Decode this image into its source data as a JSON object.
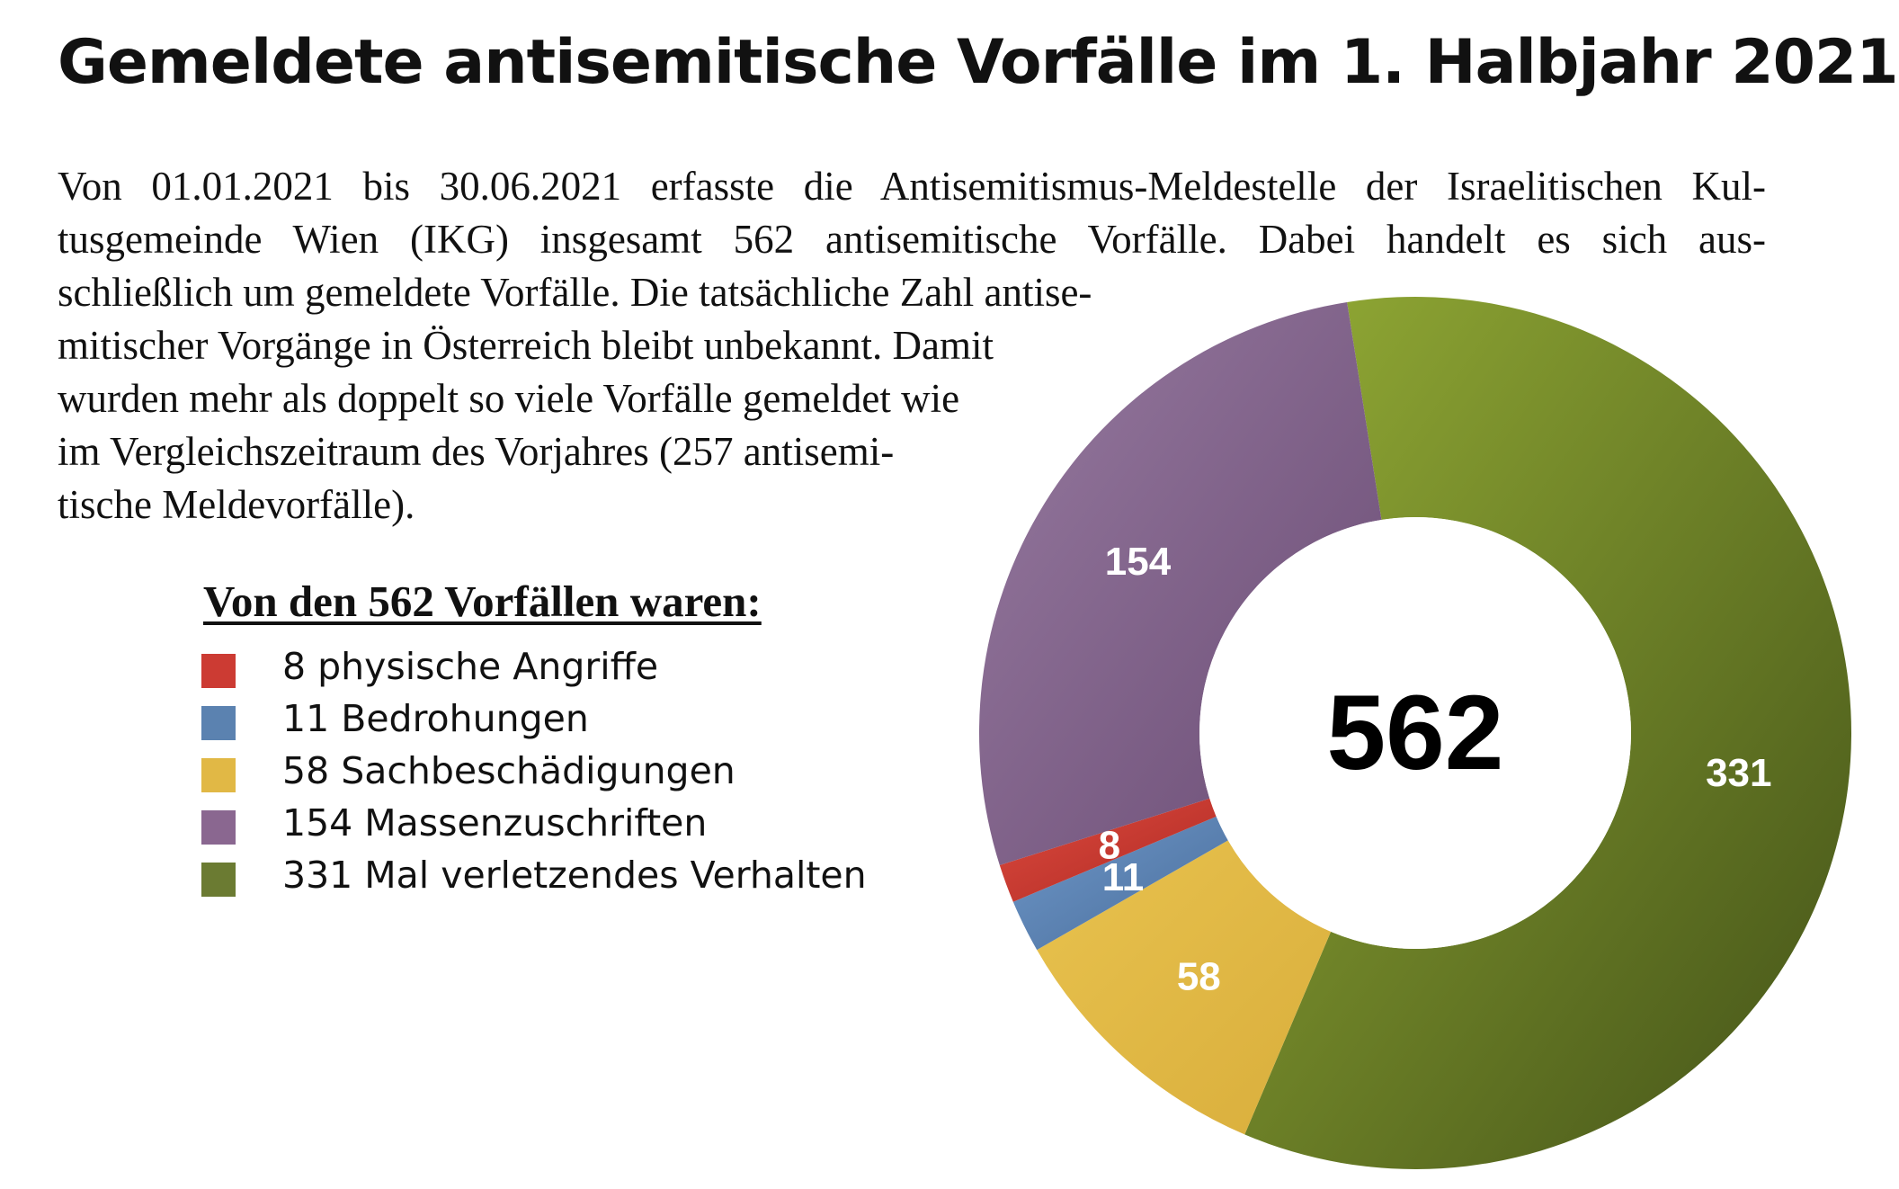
{
  "title": "Gemeldete antisemitische Vorfälle im 1. Halbjahr 2021",
  "paragraph_lines": [
    "Von 01.01.2021 bis 30.06.2021 erfasste die Antisemitismus-Meldestelle der Israelitischen Kul-",
    "tusgemeinde Wien (IKG) insgesamt 562 antisemitische Vorfälle. Dabei handelt es sich aus-",
    "schließlich um gemeldete Vorfälle. Die tatsächliche Zahl antise-",
    "mitischer Vorgänge in Österreich bleibt unbekannt. Damit",
    "wurden mehr als doppelt so viele Vorfälle gemeldet wie",
    "im Vergleichszeitraum des Vorjahres (257 antisemi-",
    "tische Meldevorfälle)."
  ],
  "legend_title": "Von den 562 Vorfällen waren:",
  "legend_items": [
    {
      "label": "8 physische Angriffe",
      "color": "#cc3b33"
    },
    {
      "label": "11 Bedrohungen",
      "color": "#5b82b0"
    },
    {
      "label": "58 Sachbeschädigungen",
      "color": "#e1b845"
    },
    {
      "label": "154 Massenzuschriften",
      "color": "#8a6790"
    },
    {
      "label": "331 Mal verletzendes Verhalten",
      "color": "#6b7b32"
    }
  ],
  "chart_data": {
    "type": "pie",
    "center_label": "562",
    "slices": [
      {
        "label": "331",
        "value": 331,
        "color": "#6b7b32",
        "gradient": [
          "#93ab35",
          "#435218"
        ]
      },
      {
        "label": "58",
        "value": 58,
        "color": "#e1b845",
        "gradient": [
          "#e8c24e",
          "#d9ae3c"
        ]
      },
      {
        "label": "11",
        "value": 11,
        "color": "#5b82b0",
        "gradient": [
          "#6e97c8",
          "#4a6e9c"
        ]
      },
      {
        "label": "8",
        "value": 8,
        "color": "#cc3b33",
        "gradient": [
          "#dc4a3e",
          "#b02a24"
        ]
      },
      {
        "label": "154",
        "value": 154,
        "color": "#8a6790",
        "gradient": [
          "#977aa0",
          "#6a4c74"
        ]
      }
    ]
  }
}
